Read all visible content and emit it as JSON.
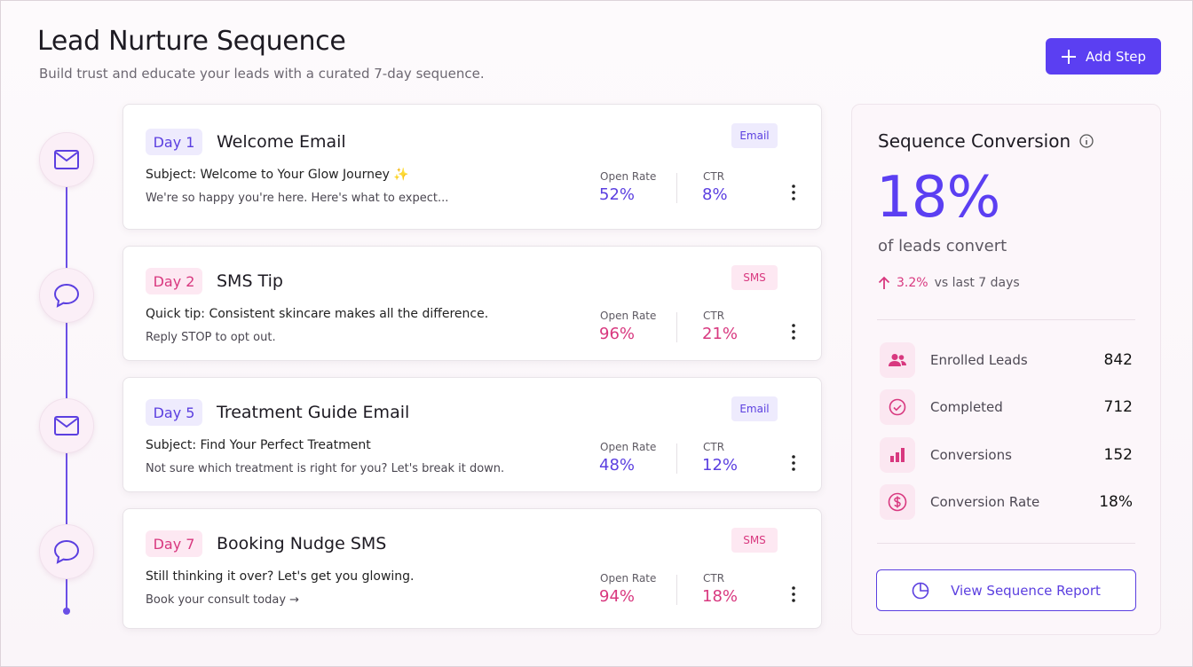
{
  "header": {
    "title": "Lead Nurture Sequence",
    "subtitle": "Build trust and educate your leads with a curated 7-day sequence.",
    "button": "Add Step"
  },
  "steps": [
    {
      "day": "Day 1",
      "title": "Welcome Email",
      "channel": "Email",
      "line1": "Subject: Welcome to Your Glow Journey ✨",
      "line2": "We're so happy you're here. Here's what to expect...",
      "open_rate_label": "Open Rate",
      "open_rate": "52%",
      "ctr_label": "CTR",
      "ctr": "8%"
    },
    {
      "day": "Day 2",
      "title": "SMS Tip",
      "channel": "SMS",
      "line1": "Quick tip: Consistent skincare makes all the difference.",
      "line2": "Reply STOP to opt out.",
      "open_rate_label": "Open Rate",
      "open_rate": "96%",
      "ctr_label": "CTR",
      "ctr": "21%"
    },
    {
      "day": "Day 5",
      "title": "Treatment Guide Email",
      "channel": "Email",
      "line1": "Subject: Find Your Perfect Treatment",
      "line2": "Not sure which treatment is right for you? Let's break it down.",
      "open_rate_label": "Open Rate",
      "open_rate": "48%",
      "ctr_label": "CTR",
      "ctr": "12%"
    },
    {
      "day": "Day 7",
      "title": "Booking Nudge SMS",
      "channel": "SMS",
      "line1": "Still thinking it over? Let's get you glowing.",
      "line2": "Book your consult today →",
      "open_rate_label": "Open Rate",
      "open_rate": "94%",
      "ctr_label": "CTR",
      "ctr": "18%"
    }
  ],
  "summary": {
    "title": "Sequence Conversion",
    "value": "18%",
    "caption": "of leads convert",
    "change": "3.2%",
    "change_caption": "vs last 7 days",
    "stats": [
      {
        "label": "Enrolled Leads",
        "value": "842"
      },
      {
        "label": "Completed",
        "value": "712"
      },
      {
        "label": "Conversions",
        "value": "152"
      },
      {
        "label": "Conversion Rate",
        "value": "18%"
      }
    ],
    "button": "View Sequence Report"
  }
}
